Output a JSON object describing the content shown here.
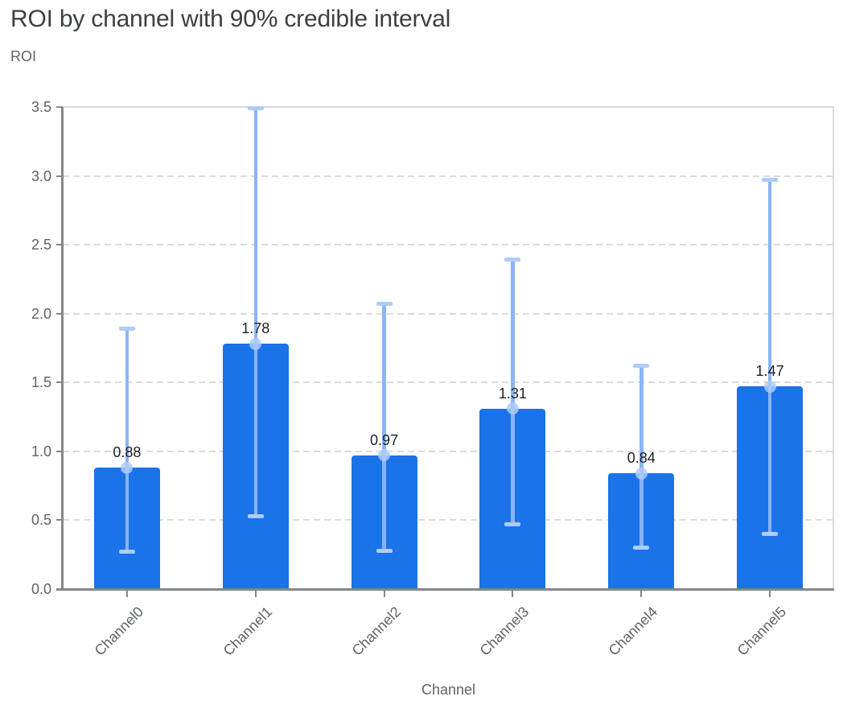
{
  "header": {
    "title": "ROI by channel with 90% credible interval"
  },
  "chart_data": {
    "type": "bar",
    "title": "ROI by channel with 90% credible interval",
    "xlabel": "Channel",
    "ylabel": "ROI",
    "categories": [
      "Channel0",
      "Channel1",
      "Channel2",
      "Channel3",
      "Channel4",
      "Channel5"
    ],
    "values": [
      0.88,
      1.78,
      0.97,
      1.31,
      0.84,
      1.47
    ],
    "bar_value_labels": [
      "0.88",
      "1.78",
      "0.97",
      "1.31",
      "0.84",
      "1.47"
    ],
    "error_low": [
      0.27,
      0.53,
      0.28,
      0.47,
      0.3,
      0.4
    ],
    "error_high": [
      1.89,
      3.49,
      2.07,
      2.39,
      1.62,
      2.97
    ],
    "error_bar_meaning": "90% credible interval",
    "ylim": [
      0,
      3.5
    ],
    "ytick_step": 0.5,
    "ytick_labels": [
      "0.0",
      "0.5",
      "1.0",
      "1.5",
      "2.0",
      "2.5",
      "3.0",
      "3.5"
    ],
    "grid": "horizontal dashed",
    "legend": "none",
    "colors": {
      "bar": "#1a73e8",
      "error_line": "#8ab4f8",
      "error_cap": "#aecbfa",
      "mean_dot": "rgba(174,203,250,0.85)",
      "grid": "#dadce0",
      "axis": "#83878b",
      "tick_text": "#5f6368",
      "value_label_text": "#202124",
      "title_text": "#3c4043"
    }
  }
}
